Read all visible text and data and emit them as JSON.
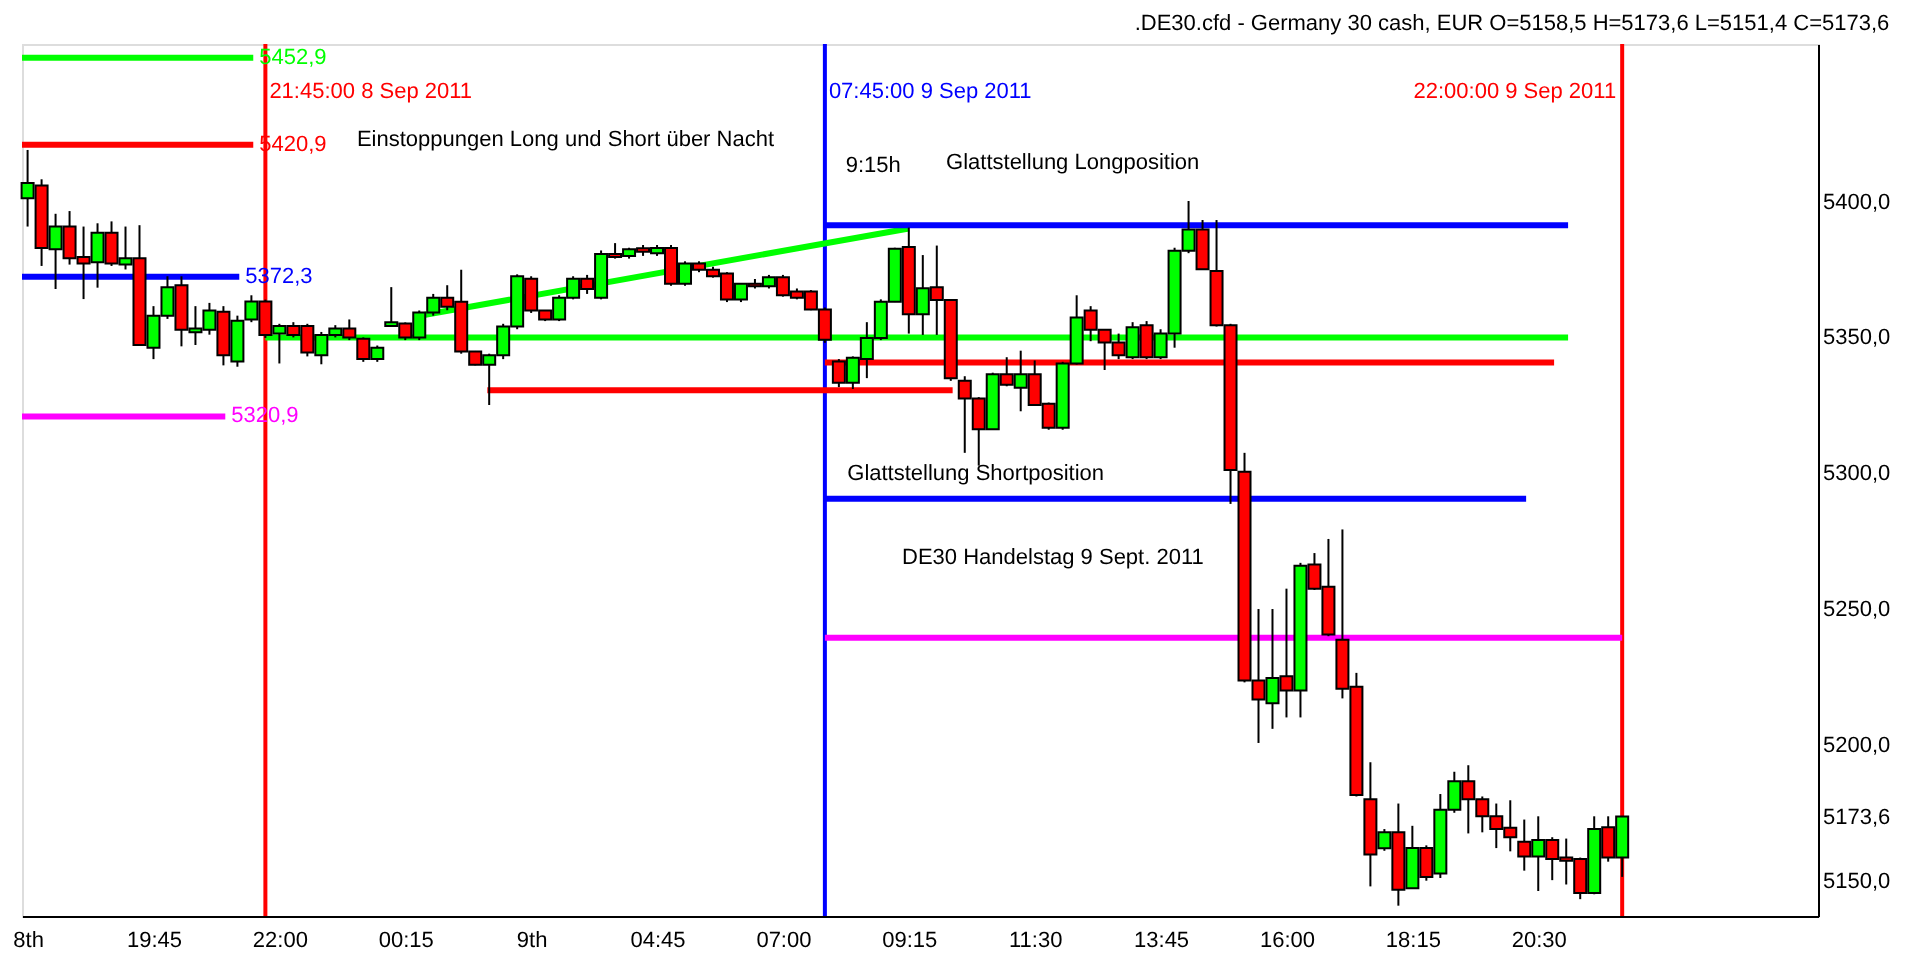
{
  "chart_data": {
    "type": "candlestick",
    "title": ".DE30.cfd - Germany 30 cash, EUR O=5158,5 H=5173,6 L=5151,4 C=5173,6",
    "x": [
      "2011-09-08T17:30",
      "2011-09-08T17:45",
      "2011-09-08T18:00",
      "2011-09-08T18:15",
      "2011-09-08T18:30",
      "2011-09-08T18:45",
      "2011-09-08T19:00",
      "2011-09-08T19:15",
      "2011-09-08T19:30",
      "2011-09-08T19:45",
      "2011-09-08T20:00",
      "2011-09-08T20:15",
      "2011-09-08T20:30",
      "2011-09-08T20:45",
      "2011-09-08T21:00",
      "2011-09-08T21:15",
      "2011-09-08T21:30",
      "2011-09-08T21:45",
      "2011-09-08T22:00",
      "2011-09-08T22:15",
      "2011-09-08T22:30",
      "2011-09-08T22:45",
      "2011-09-08T23:00",
      "2011-09-08T23:15",
      "2011-09-08T23:30",
      "2011-09-08T23:45",
      "2011-09-09T00:00",
      "2011-09-09T00:15",
      "2011-09-09T00:30",
      "2011-09-09T00:45",
      "2011-09-09T01:00",
      "2011-09-09T01:15",
      "2011-09-09T01:30",
      "2011-09-09T01:45",
      "2011-09-09T02:00",
      "2011-09-09T02:15",
      "2011-09-09T02:30",
      "2011-09-09T02:45",
      "2011-09-09T03:00",
      "2011-09-09T03:15",
      "2011-09-09T03:30",
      "2011-09-09T03:45",
      "2011-09-09T04:00",
      "2011-09-09T04:15",
      "2011-09-09T04:30",
      "2011-09-09T04:45",
      "2011-09-09T05:00",
      "2011-09-09T05:15",
      "2011-09-09T05:30",
      "2011-09-09T05:45",
      "2011-09-09T06:00",
      "2011-09-09T06:15",
      "2011-09-09T06:30",
      "2011-09-09T06:45",
      "2011-09-09T07:00",
      "2011-09-09T07:15",
      "2011-09-09T07:30",
      "2011-09-09T07:45",
      "2011-09-09T08:00",
      "2011-09-09T08:15",
      "2011-09-09T08:30",
      "2011-09-09T08:45",
      "2011-09-09T09:00",
      "2011-09-09T09:15",
      "2011-09-09T09:30",
      "2011-09-09T09:45",
      "2011-09-09T10:00",
      "2011-09-09T10:15",
      "2011-09-09T10:30",
      "2011-09-09T10:45",
      "2011-09-09T11:00",
      "2011-09-09T11:15",
      "2011-09-09T11:30",
      "2011-09-09T11:45",
      "2011-09-09T12:00",
      "2011-09-09T12:15",
      "2011-09-09T12:30",
      "2011-09-09T12:45",
      "2011-09-09T13:00",
      "2011-09-09T13:15",
      "2011-09-09T13:30",
      "2011-09-09T13:45",
      "2011-09-09T14:00",
      "2011-09-09T14:15",
      "2011-09-09T14:30",
      "2011-09-09T14:45",
      "2011-09-09T15:00",
      "2011-09-09T15:15",
      "2011-09-09T15:30",
      "2011-09-09T15:45",
      "2011-09-09T16:00",
      "2011-09-09T16:15",
      "2011-09-09T16:30",
      "2011-09-09T16:45",
      "2011-09-09T17:00",
      "2011-09-09T17:15",
      "2011-09-09T17:30",
      "2011-09-09T17:45",
      "2011-09-09T18:00",
      "2011-09-09T18:15",
      "2011-09-09T18:30",
      "2011-09-09T18:45",
      "2011-09-09T19:00",
      "2011-09-09T19:15",
      "2011-09-09T19:30",
      "2011-09-09T19:45",
      "2011-09-09T20:00",
      "2011-09-09T20:15",
      "2011-09-09T20:30",
      "2011-09-09T20:45",
      "2011-09-09T21:00",
      "2011-09-09T21:15",
      "2011-09-09T21:30",
      "2011-09-09T21:45",
      "2011-09-09T22:00"
    ],
    "ohlc": [
      [
        5401.2,
        5419.0,
        5390.8,
        5406.8
      ],
      [
        5405.9,
        5408.2,
        5376.3,
        5382.9
      ],
      [
        5382.4,
        5395.5,
        5367.8,
        5390.8
      ],
      [
        5390.8,
        5396.5,
        5376.8,
        5379.1
      ],
      [
        5379.6,
        5390.8,
        5364.1,
        5377.2
      ],
      [
        5377.7,
        5392.0,
        5368.3,
        5388.5
      ],
      [
        5388.5,
        5392.7,
        5376.3,
        5377.2
      ],
      [
        5376.8,
        5390.8,
        5375.0,
        5379.1
      ],
      [
        5379.1,
        5391.3,
        5347.0,
        5347.2
      ],
      [
        5346.2,
        5361.5,
        5342.0,
        5358.0
      ],
      [
        5358.0,
        5372.5,
        5356.8,
        5368.5
      ],
      [
        5369.2,
        5372.5,
        5346.7,
        5352.8
      ],
      [
        5351.9,
        5361.5,
        5347.2,
        5353.3
      ],
      [
        5352.8,
        5362.7,
        5351.0,
        5359.9
      ],
      [
        5359.4,
        5361.5,
        5339.7,
        5343.4
      ],
      [
        5341.1,
        5358.0,
        5339.2,
        5356.1
      ],
      [
        5356.6,
        5365.5,
        5355.6,
        5363.2
      ],
      [
        5363.2,
        5363.9,
        5349.8,
        5350.9
      ],
      [
        5351.4,
        5355.0,
        5340.4,
        5354.2
      ],
      [
        5354.2,
        5355.6,
        5350.0,
        5350.9
      ],
      [
        5354.2,
        5355.0,
        5343.0,
        5344.4
      ],
      [
        5343.4,
        5352.0,
        5340.1,
        5350.9
      ],
      [
        5350.9,
        5354.5,
        5350.0,
        5353.3
      ],
      [
        5353.3,
        5356.6,
        5349.0,
        5350.0
      ],
      [
        5349.5,
        5350.0,
        5341.0,
        5342.0
      ],
      [
        5342.0,
        5347.0,
        5341.0,
        5346.2
      ],
      [
        5354.2,
        5368.5,
        5354.0,
        5355.6
      ],
      [
        5355.1,
        5355.5,
        5349.0,
        5350.0
      ],
      [
        5350.0,
        5359.9,
        5349.0,
        5359.2
      ],
      [
        5359.2,
        5366.0,
        5358.0,
        5364.6
      ],
      [
        5364.6,
        5369.2,
        5360.0,
        5361.3
      ],
      [
        5363.1,
        5374.9,
        5344.0,
        5344.8
      ],
      [
        5344.8,
        5345.0,
        5339.7,
        5339.9
      ],
      [
        5339.9,
        5344.0,
        5325.1,
        5343.4
      ],
      [
        5343.4,
        5355.0,
        5342.0,
        5354.0
      ],
      [
        5354.0,
        5373.2,
        5353.0,
        5372.5
      ],
      [
        5371.6,
        5372.5,
        5359.0,
        5359.9
      ],
      [
        5359.9,
        5360.0,
        5356.0,
        5356.6
      ],
      [
        5356.6,
        5365.5,
        5356.0,
        5364.6
      ],
      [
        5364.6,
        5372.5,
        5364.0,
        5371.6
      ],
      [
        5371.6,
        5373.0,
        5366.0,
        5367.8
      ],
      [
        5364.6,
        5382.0,
        5364.0,
        5380.7
      ],
      [
        5380.7,
        5384.7,
        5379.0,
        5379.6
      ],
      [
        5380.0,
        5383.0,
        5379.0,
        5382.4
      ],
      [
        5382.8,
        5384.0,
        5380.0,
        5381.5
      ],
      [
        5381.0,
        5384.0,
        5380.0,
        5382.9
      ],
      [
        5382.9,
        5384.0,
        5369.0,
        5369.7
      ],
      [
        5369.7,
        5378.0,
        5369.0,
        5377.2
      ],
      [
        5377.2,
        5378.0,
        5374.0,
        5374.9
      ],
      [
        5374.9,
        5376.0,
        5372.0,
        5372.5
      ],
      [
        5373.5,
        5374.0,
        5363.0,
        5363.9
      ],
      [
        5363.9,
        5370.0,
        5363.0,
        5369.7
      ],
      [
        5369.7,
        5371.5,
        5368.0,
        5368.8
      ],
      [
        5368.8,
        5373.0,
        5368.0,
        5372.1
      ],
      [
        5372.1,
        5373.0,
        5365.0,
        5365.5
      ],
      [
        5366.9,
        5368.0,
        5364.0,
        5364.6
      ],
      [
        5366.9,
        5367.4,
        5360.0,
        5360.3
      ],
      [
        5360.3,
        5361.0,
        5348.0,
        5349.1
      ],
      [
        5341.1,
        5342.0,
        5331.7,
        5333.3
      ],
      [
        5333.3,
        5343.0,
        5331.0,
        5342.5
      ],
      [
        5342.0,
        5355.6,
        5335.0,
        5349.8
      ],
      [
        5349.8,
        5364.0,
        5349.0,
        5363.1
      ],
      [
        5363.1,
        5383.0,
        5363.0,
        5382.6
      ],
      [
        5383.3,
        5390.4,
        5351.4,
        5358.5
      ],
      [
        5358.5,
        5380.3,
        5350.9,
        5368.1
      ],
      [
        5368.5,
        5383.8,
        5350.9,
        5363.8
      ],
      [
        5363.8,
        5364.0,
        5334.0,
        5335.0
      ],
      [
        5334.0,
        5335.7,
        5307.5,
        5327.5
      ],
      [
        5327.5,
        5328.0,
        5302.8,
        5316.2
      ],
      [
        5316.2,
        5337.0,
        5316.0,
        5336.4
      ],
      [
        5336.4,
        5342.7,
        5332.0,
        5332.6
      ],
      [
        5331.5,
        5345.1,
        5322.8,
        5336.4
      ],
      [
        5336.4,
        5341.5,
        5325.0,
        5325.1
      ],
      [
        5325.6,
        5326.0,
        5316.0,
        5316.7
      ],
      [
        5316.7,
        5341.0,
        5316.0,
        5340.4
      ],
      [
        5340.4,
        5365.5,
        5340.0,
        5357.3
      ],
      [
        5359.9,
        5361.5,
        5348.6,
        5352.8
      ],
      [
        5352.8,
        5353.0,
        5338.0,
        5348.1
      ],
      [
        5348.1,
        5351.4,
        5342.0,
        5343.4
      ],
      [
        5342.7,
        5355.6,
        5342.0,
        5353.7
      ],
      [
        5354.5,
        5356.0,
        5342.0,
        5342.7
      ],
      [
        5342.7,
        5353.0,
        5342.0,
        5351.4
      ],
      [
        5351.4,
        5383.0,
        5346.2,
        5381.9
      ],
      [
        5381.9,
        5400.2,
        5381.0,
        5389.7
      ],
      [
        5389.7,
        5393.2,
        5375.0,
        5375.1
      ],
      [
        5374.4,
        5393.2,
        5354.0,
        5354.5
      ],
      [
        5354.5,
        5355.0,
        5288.7,
        5301.2
      ],
      [
        5300.5,
        5307.5,
        5223.0,
        5223.7
      ],
      [
        5223.7,
        5250.0,
        5200.7,
        5216.7
      ],
      [
        5215.3,
        5250.0,
        5205.9,
        5224.6
      ],
      [
        5225.3,
        5257.5,
        5210.1,
        5220.0
      ],
      [
        5220.0,
        5267.0,
        5210.1,
        5265.9
      ],
      [
        5266.4,
        5270.6,
        5257.0,
        5257.5
      ],
      [
        5258.2,
        5275.8,
        5240.0,
        5240.6
      ],
      [
        5238.7,
        5279.3,
        5217.1,
        5220.7
      ],
      [
        5221.4,
        5226.5,
        5181.0,
        5181.5
      ],
      [
        5180.0,
        5193.6,
        5147.9,
        5159.6
      ],
      [
        5161.9,
        5169.0,
        5161.0,
        5167.8
      ],
      [
        5167.8,
        5178.4,
        5140.8,
        5146.7
      ],
      [
        5147.2,
        5170.2,
        5147.0,
        5162.0
      ],
      [
        5162.0,
        5163.0,
        5150.0,
        5151.4
      ],
      [
        5152.6,
        5181.9,
        5151.0,
        5176.1
      ],
      [
        5176.1,
        5190.1,
        5175.0,
        5186.6
      ],
      [
        5186.6,
        5192.5,
        5167.4,
        5180.0
      ],
      [
        5180.0,
        5181.0,
        5167.8,
        5173.7
      ],
      [
        5173.7,
        5178.4,
        5162.0,
        5169.0
      ],
      [
        5169.5,
        5179.6,
        5160.8,
        5166.0
      ],
      [
        5164.3,
        5172.5,
        5153.7,
        5158.9
      ],
      [
        5158.9,
        5173.7,
        5146.2,
        5165.0
      ],
      [
        5165.0,
        5166.0,
        5150.2,
        5158.0
      ],
      [
        5158.5,
        5165.5,
        5148.6,
        5157.3
      ],
      [
        5158.0,
        5158.5,
        5143.2,
        5145.5
      ],
      [
        5145.5,
        5173.7,
        5145.0,
        5169.0
      ],
      [
        5169.7,
        5173.7,
        5157.0,
        5158.5
      ],
      [
        5158.5,
        5173.6,
        5151.4,
        5173.6
      ]
    ],
    "series": [
      {
        "type": "line",
        "name": "5452,9",
        "color": "#00ff00",
        "x": [
          "2011-09-08T17:24",
          "2011-09-08T21:32"
        ],
        "values": [
          5452.9,
          5452.9
        ]
      },
      {
        "type": "line",
        "name": "5420,9",
        "color": "#ff0000",
        "x": [
          "2011-09-08T17:24",
          "2011-09-08T21:32"
        ],
        "values": [
          5420.9,
          5420.9
        ]
      },
      {
        "type": "line",
        "name": "5372,3",
        "color": "#0000ff",
        "x": [
          "2011-09-08T17:24",
          "2011-09-08T21:17"
        ],
        "values": [
          5372.3,
          5372.3
        ]
      },
      {
        "type": "line",
        "name": "5320,9",
        "color": "#ff00ff",
        "x": [
          "2011-09-08T17:24",
          "2011-09-08T21:02"
        ],
        "values": [
          5320.9,
          5320.9
        ]
      },
      {
        "type": "line",
        "color": "#00ff00",
        "x": [
          "2011-09-09T00:26",
          "2011-09-09T09:15"
        ],
        "values": [
          5357.7,
          5390.1
        ]
      },
      {
        "type": "line",
        "color": "#00ff00",
        "x": [
          "2011-09-08T21:45",
          "2011-09-09T21:02"
        ],
        "values": [
          5350.0,
          5350.0
        ]
      },
      {
        "type": "line",
        "color": "#ff0000",
        "x": [
          "2011-09-09T01:43",
          "2011-09-09T10:02"
        ],
        "values": [
          5330.5,
          5330.5
        ]
      },
      {
        "type": "line",
        "color": "#ff0000",
        "x": [
          "2011-09-09T07:45",
          "2011-09-09T20:47"
        ],
        "values": [
          5340.8,
          5340.8
        ]
      },
      {
        "type": "line",
        "color": "#0000ff",
        "x": [
          "2011-09-09T07:45",
          "2011-09-09T21:02"
        ],
        "values": [
          5391.3,
          5391.3
        ]
      },
      {
        "type": "line",
        "color": "#0000ff",
        "x": [
          "2011-09-09T07:45",
          "2011-09-09T20:17"
        ],
        "values": [
          5290.6,
          5290.6
        ]
      },
      {
        "type": "line",
        "color": "#ff00ff",
        "x": [
          "2011-09-09T07:45",
          "2011-09-09T22:00"
        ],
        "values": [
          5239.4,
          5239.4
        ]
      }
    ],
    "ref_lines": [
      {
        "axis": "x",
        "value": "2011-09-08T21:45",
        "label": "21:45:00 8 Sep 2011",
        "color": "#ff0000"
      },
      {
        "axis": "x",
        "value": "2011-09-09T07:45",
        "label": "07:45:00 9 Sep 2011",
        "color": "#0000ff"
      },
      {
        "axis": "x",
        "value": "2011-09-09T22:00",
        "label": "22:00:00 9 Sep 2011",
        "color": "#ff0000"
      }
    ],
    "annotations": [
      "Einstoppungen Long und Short über Nacht",
      "9:15h",
      "Glattstellung Longposition",
      "Glattstellung Shortposition",
      "DE30 Handelstag 9 Sept. 2011"
    ],
    "xlim": [
      "2011-09-08T17:24",
      "2011-09-10T01:30"
    ],
    "xticks": [
      {
        "value": "2011-09-08T17:30",
        "label": "8th"
      },
      {
        "value": "2011-09-08T19:45",
        "label": "19:45"
      },
      {
        "value": "2011-09-08T22:00",
        "label": "22:00"
      },
      {
        "value": "2011-09-09T00:15",
        "label": "00:15"
      },
      {
        "value": "2011-09-09T02:30",
        "label": "9th"
      },
      {
        "value": "2011-09-09T04:45",
        "label": "04:45"
      },
      {
        "value": "2011-09-09T07:00",
        "label": "07:00"
      },
      {
        "value": "2011-09-09T09:15",
        "label": "09:15"
      },
      {
        "value": "2011-09-09T11:30",
        "label": "11:30"
      },
      {
        "value": "2011-09-09T13:45",
        "label": "13:45"
      },
      {
        "value": "2011-09-09T16:00",
        "label": "16:00"
      },
      {
        "value": "2011-09-09T18:15",
        "label": "18:15"
      },
      {
        "value": "2011-09-09T20:30",
        "label": "20:30"
      }
    ],
    "ylim": [
      5137,
      5458
    ],
    "yticks": [
      {
        "value": 5150,
        "label": "5150,0"
      },
      {
        "value": 5173.6,
        "label": "5173,6"
      },
      {
        "value": 5200,
        "label": "5200,0"
      },
      {
        "value": 5250,
        "label": "5250,0"
      },
      {
        "value": 5300,
        "label": "5300,0"
      },
      {
        "value": 5350,
        "label": "5350,0"
      },
      {
        "value": 5400,
        "label": "5400,0"
      }
    ],
    "grid": false
  }
}
